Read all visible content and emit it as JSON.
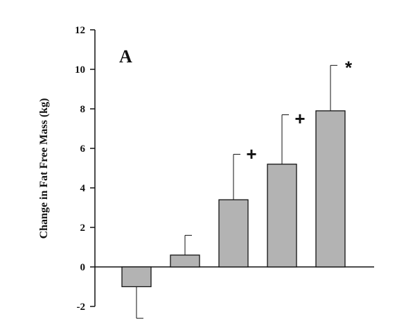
{
  "chart_data": {
    "type": "bar",
    "panel_label": "A",
    "title": "",
    "xlabel": "",
    "ylabel": "Change in Fat Free Mass (kg)",
    "ylim": [
      -2,
      12
    ],
    "yticks": [
      -2,
      0,
      2,
      4,
      6,
      8,
      10,
      12
    ],
    "grid": false,
    "categories": [
      "",
      "",
      "",
      "",
      ""
    ],
    "values": [
      -1.0,
      0.6,
      3.4,
      5.2,
      7.9
    ],
    "error": [
      1.6,
      1.0,
      2.3,
      2.5,
      2.3
    ],
    "annotations": [
      "",
      "",
      "+",
      "+",
      "*"
    ],
    "colors": {
      "bar": "#b3b3b3",
      "bar_edge": "#111111",
      "axis": "#111111"
    }
  }
}
